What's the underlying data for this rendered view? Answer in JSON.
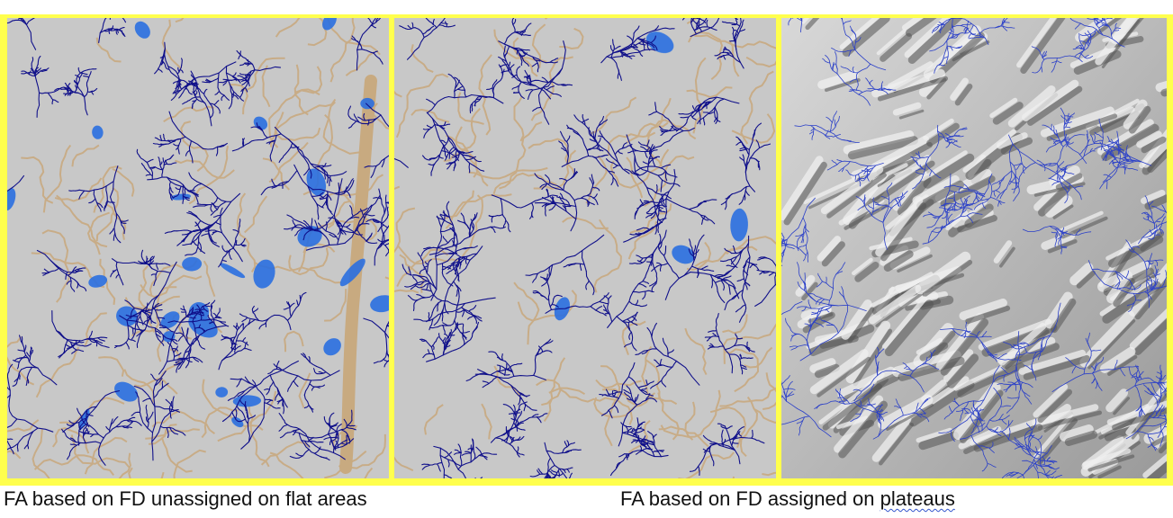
{
  "captions": {
    "left_prefix": "FA based on FD unassigned on flat areas",
    "right_prefix": "FA based on FD assigned on ",
    "right_underlined": "plateaus"
  },
  "colors": {
    "frame": "#ffff4d",
    "map_background": "#c8c8c8",
    "drainage_lines": "#10108a",
    "flat_areas": "#2a6fe0",
    "catchment_boundaries": "#c8aa80",
    "hillshade_light": "#f0f0f0",
    "hillshade_dark": "#555555"
  },
  "panels": [
    {
      "id": "unassigned-flow-accumulation-map",
      "layers": [
        "catchment-boundaries",
        "drainage-network",
        "flat-areas"
      ]
    },
    {
      "id": "assigned-flow-accumulation-map",
      "layers": [
        "catchment-boundaries",
        "drainage-network"
      ]
    },
    {
      "id": "hillshade-flow-accumulation-map",
      "layers": [
        "hillshade-relief",
        "drainage-network"
      ]
    }
  ]
}
